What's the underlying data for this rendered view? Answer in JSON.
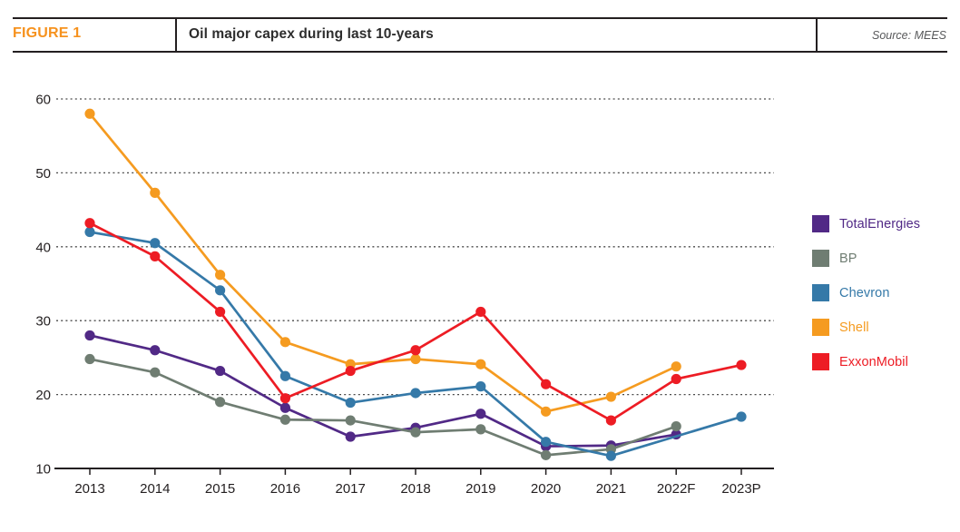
{
  "header": {
    "figure_label": "FIGURE 1",
    "title": "Oil major capex during last 10-years",
    "source": "Source: MEES",
    "accent_color": "#F6921E"
  },
  "chart_data": {
    "type": "line",
    "title": "Oil major capex during last 10-years",
    "categories": [
      "2013",
      "2014",
      "2015",
      "2016",
      "2017",
      "2018",
      "2019",
      "2020",
      "2021",
      "2022F",
      "2023P"
    ],
    "xlabel": "",
    "ylabel": "",
    "ylim": [
      10,
      60
    ],
    "y_ticks": [
      60,
      50,
      40,
      30,
      20,
      10
    ],
    "gridline_values": [
      60,
      50,
      40,
      30,
      20
    ],
    "grid": "dotted-horizontal",
    "legend_position": "right",
    "series": [
      {
        "name": "TotalEnergies",
        "color": "#512986",
        "values": [
          28,
          26,
          23.2,
          18.2,
          14.3,
          15.5,
          17.4,
          13,
          13.1,
          14.6,
          null
        ]
      },
      {
        "name": "BP",
        "color": "#6F7D72",
        "values": [
          24.8,
          23,
          19,
          16.6,
          16.5,
          14.9,
          15.3,
          11.8,
          12.6,
          15.7,
          null
        ]
      },
      {
        "name": "Chevron",
        "color": "#3579A8",
        "values": [
          42,
          40.5,
          34.1,
          22.5,
          18.9,
          20.2,
          21.1,
          13.6,
          11.7,
          null,
          17
        ]
      },
      {
        "name": "Shell",
        "color": "#F59B20",
        "values": [
          58,
          47.3,
          36.2,
          27.1,
          24.1,
          24.8,
          24.1,
          17.7,
          19.7,
          23.8,
          null
        ]
      },
      {
        "name": "ExxonMobil",
        "color": "#ED1C24",
        "values": [
          43.2,
          38.7,
          31.2,
          19.5,
          23.2,
          26,
          31.2,
          21.4,
          16.5,
          22.1,
          24
        ]
      }
    ]
  }
}
